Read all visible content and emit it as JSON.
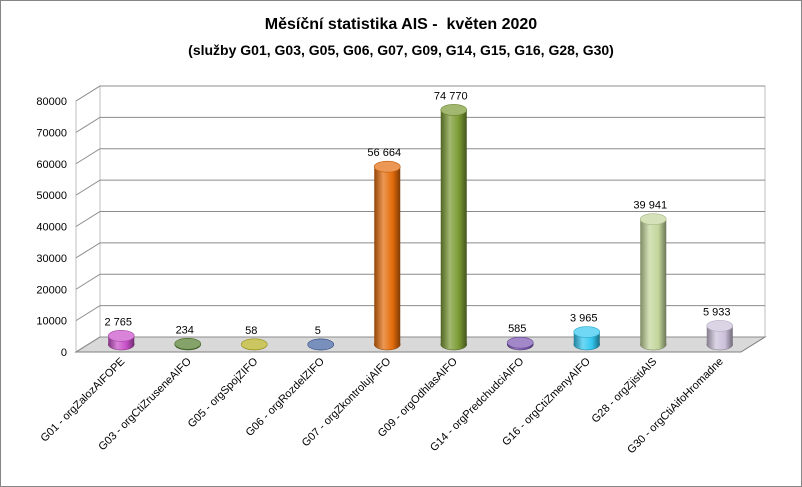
{
  "chart_data": {
    "type": "bar",
    "title": "Měsíční statistika AIS -  květen 2020",
    "subtitle": "(služby G01, G03, G05, G06, G07, G09, G14, G15, G16, G28, G30)",
    "categories": [
      "G01 - orgZalozAIFOPE",
      "G03 - orgCtiZruseneAIFO",
      "G05 - orgSpojZIFO",
      "G06 - orgRozdelZIFO",
      "G07 - orgZkontrolujAIFO",
      "G09 - orgOdhlasAIFO",
      "G14 - orgPredchudciAIFO",
      "G16 - orgCtiZmenyAIFO",
      "G28 - orgZjistiAIS",
      "G30 - orgCtiAifoHromadne"
    ],
    "values": [
      2765,
      234,
      58,
      5,
      56664,
      74770,
      585,
      3965,
      39941,
      5933
    ],
    "data_labels": [
      "2 765",
      "234",
      "58",
      "5",
      "56 664",
      "74 770",
      "585",
      "3 965",
      "39 941",
      "5 933"
    ],
    "colors": [
      "#c84fc8",
      "#4f7a28",
      "#b5ad1c",
      "#3f5f9f",
      "#e46c0a",
      "#7a9a33",
      "#7a55b0",
      "#33c7f0",
      "#c3d69b",
      "#ccc1da"
    ],
    "y_ticks": [
      0,
      10000,
      20000,
      30000,
      40000,
      50000,
      60000,
      70000,
      80000
    ],
    "ylim": [
      0,
      80000
    ],
    "grid": true
  }
}
